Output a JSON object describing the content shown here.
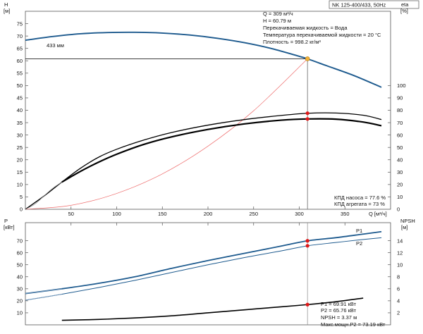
{
  "title_box": "NK 125-400/433, 50Hz",
  "chart_data": [
    {
      "type": "line",
      "name": "top",
      "x_label": "Q [м³/ч]",
      "y_left_label": "H",
      "y_left_unit": "[м]",
      "y_right_label": "eta",
      "y_right_unit": "[%]",
      "x_range": [
        0,
        400
      ],
      "y_left_range": [
        0,
        80
      ],
      "y_right_range": [
        0,
        160
      ],
      "x_ticks": [
        50,
        100,
        150,
        200,
        250,
        300,
        350
      ],
      "y_left_ticks": [
        5,
        10,
        15,
        20,
        25,
        30,
        35,
        40,
        45,
        50,
        55,
        60,
        65,
        70,
        75
      ],
      "y_right_ticks": [
        10,
        20,
        30,
        40,
        50,
        60,
        70,
        80,
        90,
        100
      ],
      "curve_label": "433 мм",
      "series": [
        {
          "id": "head",
          "axis": "left",
          "color": "#1d5a8e",
          "x": [
            0,
            30,
            60,
            90,
            120,
            150,
            180,
            210,
            240,
            270,
            300,
            309,
            330,
            360,
            390
          ],
          "y": [
            68.3,
            69.8,
            70.9,
            71.4,
            71.5,
            71.2,
            70.4,
            69.1,
            67.3,
            64.9,
            61.8,
            60.79,
            58.0,
            54.0,
            49.3
          ]
        },
        {
          "id": "system",
          "axis": "left",
          "color": "#ee6b6b",
          "x": [
            0,
            50,
            100,
            150,
            200,
            250,
            309
          ],
          "y": [
            0,
            1.6,
            6.4,
            14.3,
            25.5,
            39.8,
            60.79
          ]
        },
        {
          "id": "eta_pump",
          "axis": "right",
          "color": "#000000",
          "x": [
            0,
            20,
            40,
            60,
            80,
            100,
            130,
            160,
            200,
            240,
            280,
            309,
            340,
            370,
            390
          ],
          "y": [
            0,
            10.5,
            22,
            33,
            42,
            48.5,
            56,
            62,
            68,
            72.5,
            75.8,
            77.6,
            77.8,
            76,
            72.5
          ]
        },
        {
          "id": "eta_unit",
          "axis": "right",
          "color": "#000000",
          "x": [
            40,
            60,
            80,
            100,
            130,
            160,
            200,
            240,
            280,
            309,
            340,
            370,
            390
          ],
          "y": [
            22,
            30.5,
            38,
            44.5,
            52.5,
            58.5,
            64.5,
            69,
            72,
            73,
            72.8,
            70.5,
            67.5
          ]
        }
      ],
      "operating_point": {
        "q": 309,
        "h": 60.79,
        "eta_pump": 77.6,
        "eta_unit": 73
      },
      "info_lines": [
        "Q = 309 м³/ч",
        "H = 60.79 м",
        "Перекачиваемая жидкость = Вода",
        "Температура перекачиваемой жидкости = 20 °C",
        "Плотность = 998.2 кг/м³"
      ],
      "eta_lines": [
        "КПД насоса = 77.6 %",
        "КПД агрегата = 73 %"
      ]
    },
    {
      "type": "line",
      "name": "bottom",
      "y_left_label": "P",
      "y_left_unit": "[кВт]",
      "y_right_label": "NPSH",
      "y_right_unit": "[м]",
      "x_range": [
        0,
        400
      ],
      "y_left_range": [
        0,
        85
      ],
      "y_right_range": [
        0,
        17
      ],
      "y_left_ticks": [
        10,
        20,
        30,
        40,
        50,
        60,
        70
      ],
      "y_right_ticks": [
        2,
        4,
        6,
        8,
        10,
        12,
        14
      ],
      "series": [
        {
          "id": "P1",
          "name": "P1",
          "axis": "left",
          "color": "#1d5a8e",
          "x": [
            0,
            40,
            80,
            120,
            160,
            200,
            240,
            280,
            309,
            340,
            370,
            390
          ],
          "y": [
            26,
            30,
            34.5,
            40,
            47,
            53.5,
            59.5,
            65.5,
            69.91,
            72.5,
            75.5,
            77.5
          ]
        },
        {
          "id": "P2",
          "name": "P2",
          "axis": "left",
          "color": "#1d5a8e",
          "x": [
            0,
            40,
            80,
            120,
            160,
            200,
            240,
            280,
            309,
            340,
            370,
            390
          ],
          "y": [
            20.5,
            25.5,
            31,
            37,
            43.5,
            50,
            56,
            61.5,
            65.76,
            68.5,
            71,
            72.5
          ]
        },
        {
          "id": "NPSH",
          "axis": "right",
          "color": "#000000",
          "x": [
            40,
            80,
            120,
            160,
            200,
            240,
            280,
            309,
            340,
            370
          ],
          "y": [
            0.75,
            0.9,
            1.15,
            1.5,
            2.0,
            2.5,
            3.0,
            3.37,
            3.85,
            4.45
          ]
        }
      ],
      "operating_point": {
        "q": 309,
        "p1": 69.91,
        "p2": 65.76,
        "npsh": 3.37
      },
      "info_lines": [
        "P1 = 69.91 кВт",
        "P2 = 65.76 кВт",
        "NPSH = 3.37 м",
        "Макс.мощн.P2 = 73.19 кВт"
      ]
    }
  ]
}
